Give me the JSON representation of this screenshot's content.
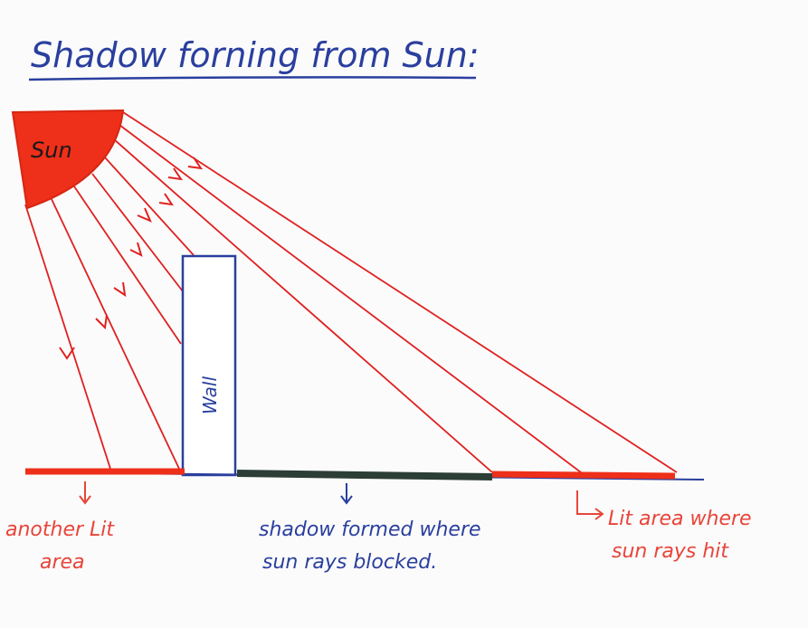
{
  "title": "Shadow forning from Sun:",
  "labels": {
    "sun": "Sun",
    "wall": "Wall",
    "left_lit_line1": "another Lit",
    "left_lit_line2": "area",
    "shadow_line1": "shadow formed where",
    "shadow_line2": "sun rays blocked.",
    "right_lit_line1": "Lit area where",
    "right_lit_line2": "sun rays hit"
  },
  "colors": {
    "ink_blue": "#2a3f9e",
    "ray_red": "#e02020",
    "sun_fill": "#ee2f19",
    "shadow_dark": "#2c3e35",
    "label_red": "#e8453a"
  }
}
